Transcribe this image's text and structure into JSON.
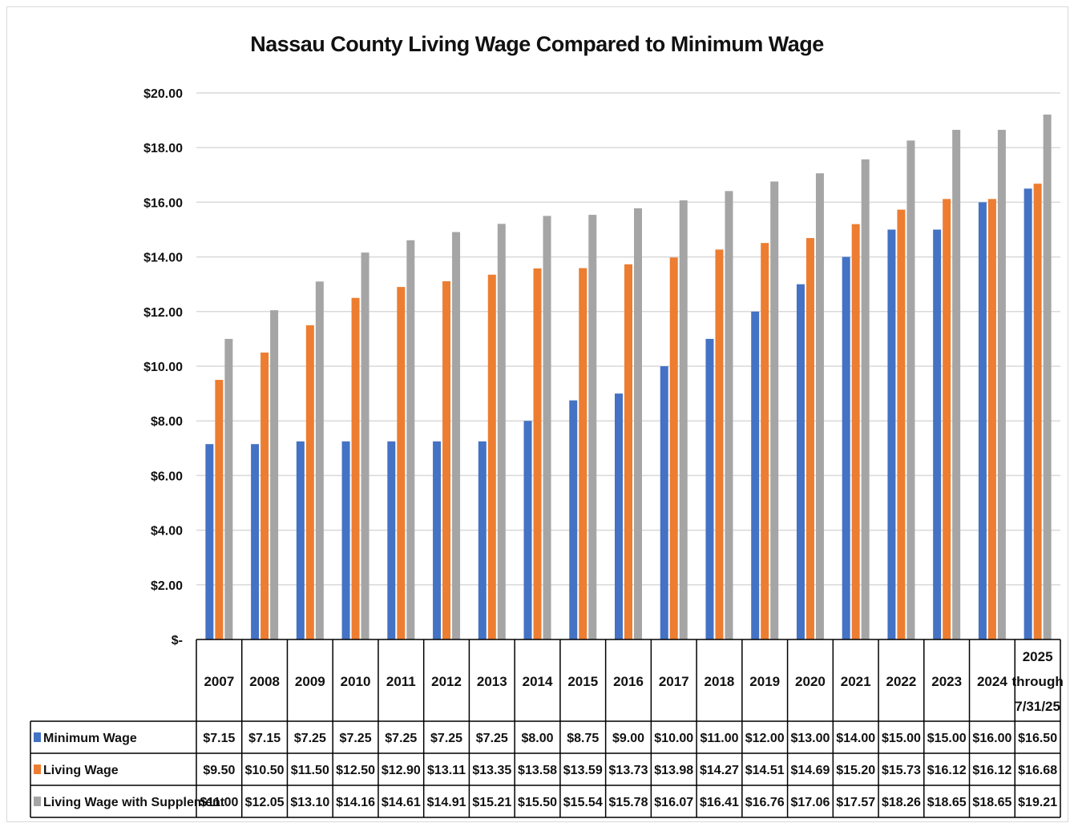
{
  "chart_data": {
    "type": "bar",
    "title": "Nassau County Living Wage Compared to Minimum Wage",
    "categories": [
      "2007",
      "2008",
      "2009",
      "2010",
      "2011",
      "2012",
      "2013",
      "2014",
      "2015",
      "2016",
      "2017",
      "2018",
      "2019",
      "2020",
      "2021",
      "2022",
      "2023",
      "2024",
      "2025 through 7/31/25"
    ],
    "series": [
      {
        "name": "Minimum Wage",
        "color": "#4472c4",
        "values": [
          7.15,
          7.15,
          7.25,
          7.25,
          7.25,
          7.25,
          7.25,
          8.0,
          8.75,
          9.0,
          10.0,
          11.0,
          12.0,
          13.0,
          14.0,
          15.0,
          15.0,
          16.0,
          16.5
        ],
        "labels": [
          "$7.15",
          "$7.15",
          "$7.25",
          "$7.25",
          "$7.25",
          "$7.25",
          "$7.25",
          "$8.00",
          "$8.75",
          "$9.00",
          "$10.00",
          "$11.00",
          "$12.00",
          "$13.00",
          "$14.00",
          "$15.00",
          "$15.00",
          "$16.00",
          "$16.50"
        ]
      },
      {
        "name": "Living Wage",
        "color": "#ed7d31",
        "values": [
          9.5,
          10.5,
          11.5,
          12.5,
          12.9,
          13.11,
          13.35,
          13.58,
          13.59,
          13.73,
          13.98,
          14.27,
          14.51,
          14.69,
          15.2,
          15.73,
          16.12,
          16.12,
          16.68
        ],
        "labels": [
          "$9.50",
          "$10.50",
          "$11.50",
          "$12.50",
          "$12.90",
          "$13.11",
          "$13.35",
          "$13.58",
          "$13.59",
          "$13.73",
          "$13.98",
          "$14.27",
          "$14.51",
          "$14.69",
          "$15.20",
          "$15.73",
          "$16.12",
          "$16.12",
          "$16.68"
        ]
      },
      {
        "name": "Living Wage with Supplement",
        "color": "#a5a5a5",
        "values": [
          11.0,
          12.05,
          13.1,
          14.16,
          14.61,
          14.91,
          15.21,
          15.5,
          15.54,
          15.78,
          16.07,
          16.41,
          16.76,
          17.06,
          17.57,
          18.26,
          18.65,
          18.65,
          19.21
        ],
        "labels": [
          "$11.00",
          "$12.05",
          "$13.10",
          "$14.16",
          "$14.61",
          "$14.91",
          "$15.21",
          "$15.50",
          "$15.54",
          "$15.78",
          "$16.07",
          "$16.41",
          "$16.76",
          "$17.06",
          "$17.57",
          "$18.26",
          "$18.65",
          "$18.65",
          "$19.21"
        ]
      }
    ],
    "ylim": [
      0,
      20
    ],
    "yticks": [
      0,
      2,
      4,
      6,
      8,
      10,
      12,
      14,
      16,
      18,
      20
    ],
    "ytick_labels": [
      "$-",
      "$2.00",
      "$4.00",
      "$6.00",
      "$8.00",
      "$10.00",
      "$12.00",
      "$14.00",
      "$16.00",
      "$18.00",
      "$20.00"
    ],
    "grid": true,
    "legend": "data-table"
  }
}
